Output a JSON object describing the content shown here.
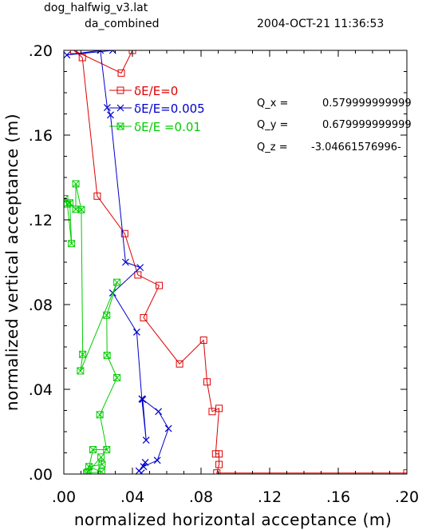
{
  "header": {
    "filename": "dog_halfwig_v3.lat",
    "dataset": "da_combined",
    "timestamp": "2004-OCT-21 11:36:53"
  },
  "q_values": [
    {
      "label": "Q_x =",
      "value": "0.579999999999"
    },
    {
      "label": "Q_y =",
      "value": "0.679999999999"
    },
    {
      "label": "Q_z =",
      "value": "-3.04661576996-"
    }
  ],
  "colors": {
    "red": "#dd0000",
    "blue": "#0000cc",
    "green": "#00cc00",
    "axis": "#000000"
  },
  "chart_data": {
    "type": "line",
    "xlabel": "normalized horizontal acceptance (m)",
    "ylabel": "normalized vertical acceptance (m)",
    "xlim": [
      0,
      0.2
    ],
    "ylim": [
      0,
      0.2
    ],
    "xticks": [
      0.0,
      0.04,
      0.08,
      0.12,
      0.16,
      0.2
    ],
    "xtick_labels": [
      ".00",
      ".04",
      ".08",
      ".12",
      ".16",
      ".20"
    ],
    "yticks": [
      0.0,
      0.04,
      0.08,
      0.12,
      0.16,
      0.2
    ],
    "ytick_labels": [
      ".00",
      ".04",
      ".08",
      ".12",
      ".16",
      ".20"
    ],
    "series": [
      {
        "name": "δE/E=0",
        "color": "#dd0000",
        "marker": "square",
        "points": [
          [
            0.2,
            0.0005
          ],
          [
            0.0892,
            0.0005
          ],
          [
            0.0905,
            0.0045
          ],
          [
            0.0905,
            0.0095
          ],
          [
            0.0885,
            0.0095
          ],
          [
            0.0905,
            0.031
          ],
          [
            0.0865,
            0.0295
          ],
          [
            0.0835,
            0.0435
          ],
          [
            0.0815,
            0.0632
          ],
          [
            0.0675,
            0.052
          ],
          [
            0.0465,
            0.0738
          ],
          [
            0.0556,
            0.089
          ],
          [
            0.0432,
            0.094
          ],
          [
            0.0355,
            0.1135
          ],
          [
            0.0195,
            0.1312
          ],
          [
            0.0108,
            0.1966
          ],
          [
            0.0058,
            0.2
          ],
          [
            0.0335,
            0.1893
          ],
          [
            0.04,
            0.2
          ]
        ]
      },
      {
        "name": "δE/E=0.005",
        "color": "#0000cc",
        "marker": "x",
        "points": [
          [
            0.0452,
            0.0005
          ],
          [
            0.0438,
            0.0015
          ],
          [
            0.0475,
            0.0055
          ],
          [
            0.0465,
            0.0035
          ],
          [
            0.0545,
            0.0065
          ],
          [
            0.061,
            0.0215
          ],
          [
            0.0552,
            0.0295
          ],
          [
            0.046,
            0.0352
          ],
          [
            0.048,
            0.016
          ],
          [
            0.0455,
            0.0355
          ],
          [
            0.0425,
            0.067
          ],
          [
            0.0285,
            0.0855
          ],
          [
            0.0445,
            0.0975
          ],
          [
            0.036,
            0.1
          ],
          [
            0.0272,
            0.1695
          ],
          [
            0.0253,
            0.173
          ],
          [
            0.0213,
            0.2
          ],
          [
            0.0018,
            0.1978
          ],
          [
            0.0285,
            0.2
          ]
        ]
      },
      {
        "name": "δE/E =0.01",
        "color": "#00cc00",
        "marker": "boxx",
        "points": [
          [
            0.0133,
            0.0005
          ],
          [
            0.022,
            0.001
          ],
          [
            0.0147,
            0.0035
          ],
          [
            0.0223,
            0.0045
          ],
          [
            0.0217,
            0.008
          ],
          [
            0.014,
            0.001
          ],
          [
            0.017,
            0.0115
          ],
          [
            0.025,
            0.0115
          ],
          [
            0.021,
            0.028
          ],
          [
            0.031,
            0.0455
          ],
          [
            0.0252,
            0.056
          ],
          [
            0.025,
            0.075
          ],
          [
            0.031,
            0.0905
          ],
          [
            0.0097,
            0.0487
          ],
          [
            0.011,
            0.0565
          ],
          [
            0.0102,
            0.1248
          ],
          [
            0.007,
            0.137
          ],
          [
            0.007,
            0.125
          ],
          [
            0.0005,
            0.13
          ],
          [
            0.002,
            0.1275
          ],
          [
            0.0045,
            0.1088
          ],
          [
            0.0035,
            0.128
          ]
        ]
      }
    ]
  }
}
